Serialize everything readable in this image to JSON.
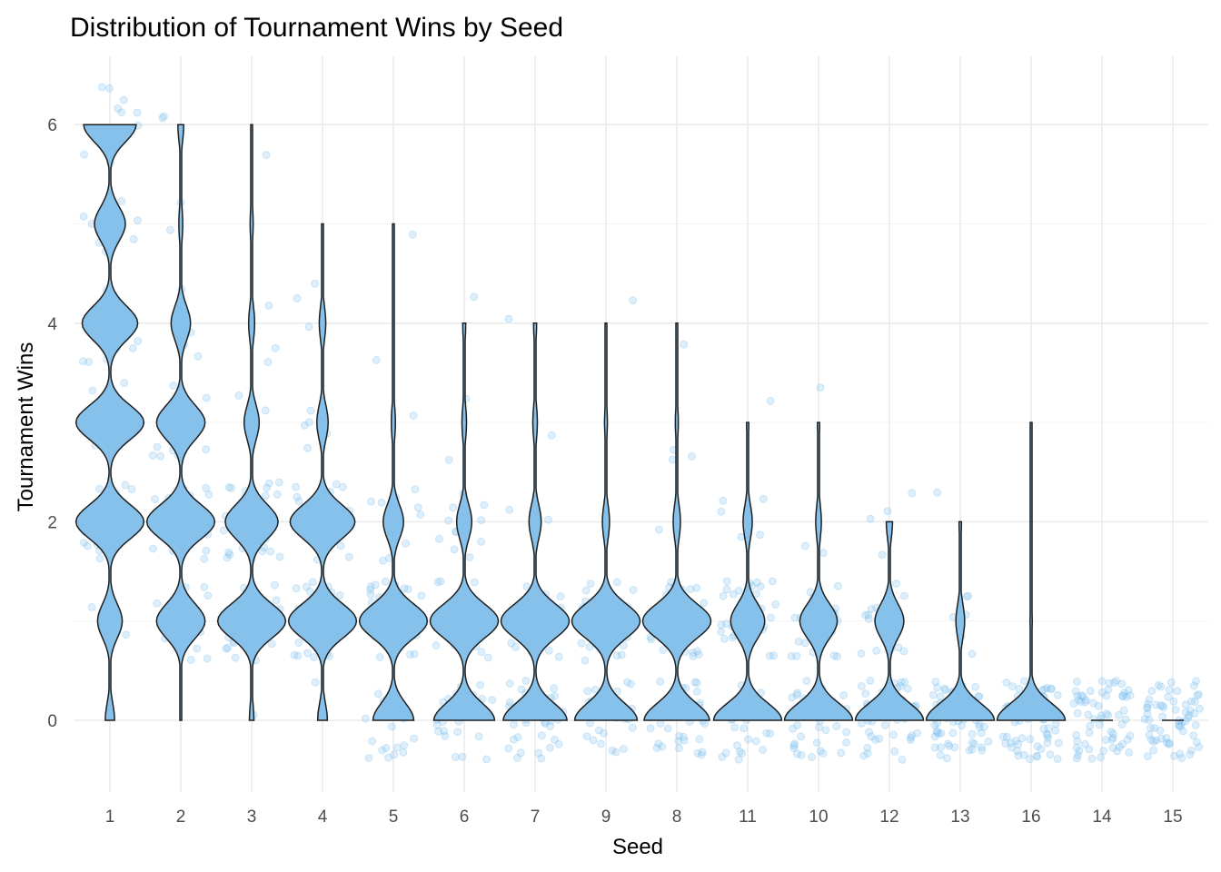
{
  "chart_data": {
    "type": "violin",
    "title": "Distribution of Tournament Wins by Seed",
    "xlabel": "Seed",
    "ylabel": "Tournament Wins",
    "categories": [
      "1",
      "2",
      "3",
      "4",
      "5",
      "6",
      "7",
      "9",
      "8",
      "11",
      "10",
      "12",
      "13",
      "16",
      "14",
      "15"
    ],
    "ylim": [
      -0.7,
      6.55
    ],
    "yticks": [
      0,
      2,
      4,
      6
    ],
    "grid": true,
    "colors": {
      "fill": "#85c1ea",
      "points": "#87c5ef",
      "outline": "#1f1f1f"
    },
    "max_wins": [
      6,
      6,
      6,
      5,
      5,
      4,
      4,
      4,
      4,
      3,
      3,
      2,
      2,
      3,
      0,
      0
    ],
    "win_distribution": [
      [
        0.03,
        0.08,
        0.22,
        0.22,
        0.18,
        0.1,
        0.17
      ],
      [
        0.0,
        0.25,
        0.35,
        0.25,
        0.1,
        0.02,
        0.03
      ],
      [
        0.03,
        0.45,
        0.35,
        0.1,
        0.04,
        0.02,
        0.01
      ],
      [
        0.06,
        0.42,
        0.4,
        0.07,
        0.04,
        0.01,
        0.0
      ],
      [
        0.3,
        0.5,
        0.15,
        0.03,
        0.01,
        0.01,
        0.0
      ],
      [
        0.4,
        0.45,
        0.1,
        0.03,
        0.02,
        0.0,
        0.0
      ],
      [
        0.42,
        0.45,
        0.08,
        0.03,
        0.02,
        0.0,
        0.0
      ],
      [
        0.44,
        0.48,
        0.05,
        0.02,
        0.01,
        0.0,
        0.0
      ],
      [
        0.45,
        0.47,
        0.05,
        0.02,
        0.01,
        0.0,
        0.0
      ],
      [
        0.6,
        0.3,
        0.08,
        0.02,
        0.0,
        0.0,
        0.0
      ],
      [
        0.6,
        0.33,
        0.05,
        0.02,
        0.0,
        0.0,
        0.0
      ],
      [
        0.66,
        0.28,
        0.06,
        0.0,
        0.0,
        0.0,
        0.0
      ],
      [
        0.86,
        0.11,
        0.03,
        0.0,
        0.0,
        0.0,
        0.0
      ],
      [
        0.96,
        0.03,
        0.0,
        0.01,
        0.0,
        0.0,
        0.0
      ],
      [
        1.0,
        0.0,
        0.0,
        0.0,
        0.0,
        0.0,
        0.0
      ],
      [
        1.0,
        0.0,
        0.0,
        0.0,
        0.0,
        0.0,
        0.0
      ]
    ]
  }
}
